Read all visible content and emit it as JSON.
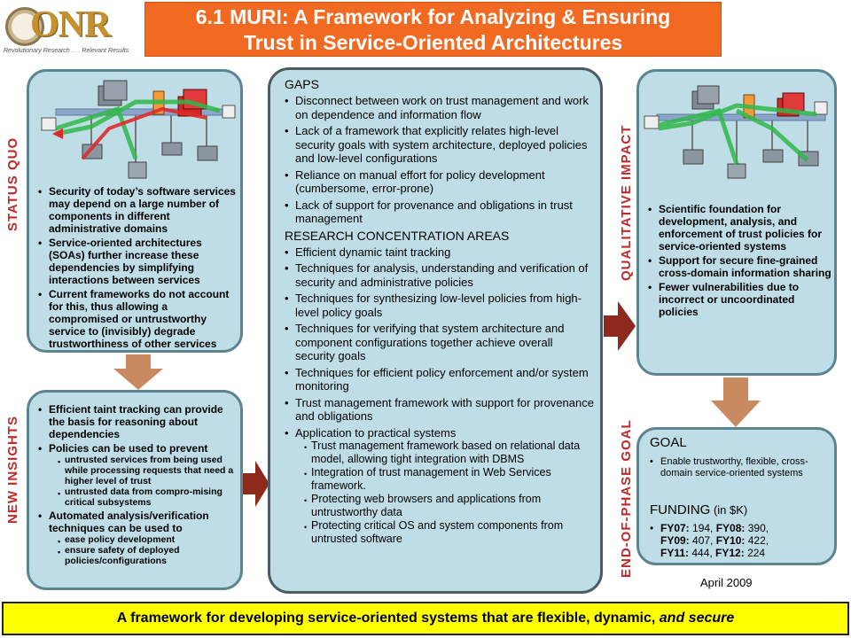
{
  "header": {
    "title_line1": "6.1 MURI: A Framework for Analyzing & Ensuring",
    "title_line2": "Trust in Service-Oriented Architectures",
    "logo_text": "ONR",
    "logo_tagline": "Revolutionary Research . . . Relevant Results"
  },
  "labels": {
    "status_quo": "STATUS QUO",
    "new_insights": "NEW INSIGHTS",
    "qualitative_impact": "QUALITATIVE IMPACT",
    "end_of_phase_goal": "END-OF-PHASE GOAL"
  },
  "status_quo": {
    "items": [
      "Security of today’s software services may depend on a large number of components in different administrative domains",
      "Service-oriented architectures (SOAs) further increase these dependencies by simplifying interactions between services",
      "Current frameworks do not account for this, thus allowing a compromised or untrustworthy service to (invisibly) degrade trustworthiness of other services"
    ]
  },
  "new_insights": {
    "item1": "Efficient taint tracking can provide the basis for reasoning about dependencies",
    "item2": "Policies can be used to prevent",
    "item2_sub": [
      "untrusted services from being used while processing requests that need a higher level of trust",
      "untrusted data from compro-mising critical subsystems"
    ],
    "item3": "Automated analysis/verification techniques can be used to",
    "item3_sub": [
      "ease policy development",
      "ensure safety of deployed policies/configurations"
    ]
  },
  "center": {
    "gaps_heading": "GAPS",
    "gaps": [
      "Disconnect between work on  trust management and work on dependence and information flow",
      "Lack of a framework that explicitly relates high-level security goals with system architecture, deployed policies and low-level configurations",
      "Reliance on manual effort for policy development (cumbersome, error-prone)",
      "Lack of support for provenance and obligations in trust management"
    ],
    "research_heading": "RESEARCH CONCENTRATION AREAS",
    "research": [
      "Efficient dynamic taint tracking",
      "Techniques for analysis, understanding and verification of security and administrative policies",
      "Techniques for synthesizing low-level policies from high-level policy goals",
      "Techniques for verifying that system architecture and component configurations together achieve overall security goals",
      "Techniques for efficient policy enforcement and/or system monitoring",
      "Trust management framework with support for provenance and obligations"
    ],
    "application": "Application to practical systems",
    "application_sub": [
      "Trust management framework based on relational data model, allowing tight integration with DBMS",
      "Integration of trust management in Web Services framework.",
      "Protecting web browsers and applications from untrustworthy data",
      "Protecting critical OS and system components from untrusted software"
    ]
  },
  "impact": {
    "items": [
      "Scientific foundation for development, analysis, and enforcement of trust policies for service-oriented systems",
      "Support for secure fine-grained cross-domain information sharing",
      "Fewer vulnerabilities due to incorrect or uncoordinated policies"
    ]
  },
  "goal": {
    "heading": "GOAL",
    "item": "Enable trustworthy, flexible, cross-domain service-oriented systems",
    "funding_heading": "FUNDING",
    "funding_unit": " (in $K)",
    "funding": [
      {
        "y1": "FY07:",
        "v1": " 194, ",
        "y2": "FY08:",
        "v2": " 390,"
      },
      {
        "y1": "FY09:",
        "v1": " 407, ",
        "y2": "FY10:",
        "v2": " 422,"
      },
      {
        "y1": "FY11:",
        "v1": " 444, ",
        "y2": "FY12:",
        "v2": " 224"
      }
    ]
  },
  "date": "April 2009",
  "footer": {
    "prefix": "A framework for developing service-oriented systems that are flexible, dynamic, ",
    "emphasis": "and secure"
  },
  "colors": {
    "title_bg": "#f26a22",
    "panel_bg": "#bfdde6",
    "label_red": "#c0282a",
    "arrow_red": "#8e2a1c",
    "arrow_tan": "#c98a62",
    "footer_bg": "#ffff00"
  }
}
